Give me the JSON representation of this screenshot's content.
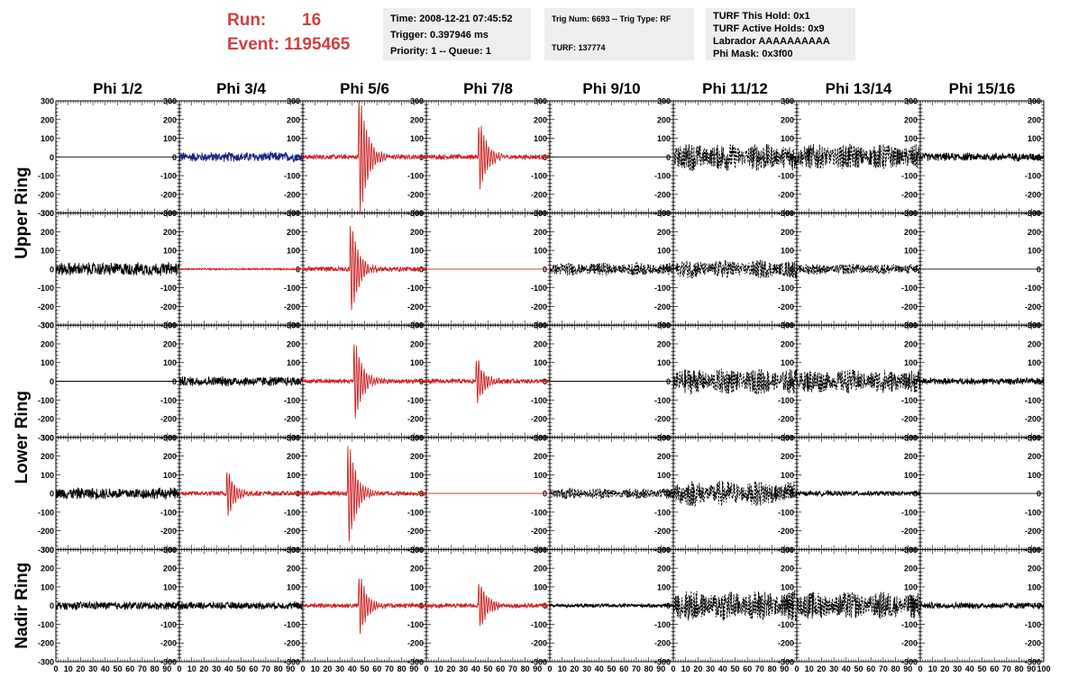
{
  "header": {
    "run_label": "Run:",
    "run_value": "16",
    "event_label": "Event: 1195465"
  },
  "info": {
    "time": "Time: 2008-12-21 07:45:52",
    "trigger": "Trigger: 0.397946 ms",
    "priority": "Priority: 1 -- Queue: 1",
    "trig": "Trig Num: 6693 -- Trig Type: RF",
    "turf": "TURF: 137774",
    "turf_hold": "TURF This Hold: 0x1",
    "turf_active": "TURF Active Holds: 0x9",
    "labrador": "Labrador AAAAAAAAAA",
    "phi_mask": "Phi Mask: 0x3f00"
  },
  "colors": {
    "waveform_default": "#000000",
    "waveform_red": "#cc2222",
    "waveform_blue": "#1a237e",
    "title_red": "#d04040"
  },
  "chart_data": {
    "type": "line",
    "columns": [
      "Phi 1/2",
      "Phi 3/4",
      "Phi 5/6",
      "Phi 7/8",
      "Phi 9/10",
      "Phi 11/12",
      "Phi 13/14",
      "Phi 15/16"
    ],
    "row_labels": [
      "Upper Ring",
      "Lower Ring",
      "Nadir Ring"
    ],
    "ylim": [
      -300,
      300
    ],
    "yticks": [
      "-300",
      "-200",
      "-100",
      "0",
      "100",
      "200",
      "300"
    ],
    "xlim": [
      0,
      100
    ],
    "xticks": [
      "0",
      "10",
      "20",
      "30",
      "40",
      "50",
      "60",
      "70",
      "80",
      "90",
      "100"
    ],
    "panels": [
      [
        {
          "style": "flat",
          "color": "black"
        },
        {
          "style": "noise",
          "amplitude": 30,
          "color": "blue"
        },
        {
          "style": "pulse",
          "amplitude": 300,
          "center": 47,
          "color": "red"
        },
        {
          "style": "pulse",
          "amplitude": 170,
          "center": 44,
          "color": "red"
        },
        {
          "style": "flat",
          "color": "black"
        },
        {
          "style": "dashed",
          "amplitude": 75,
          "color": "black"
        },
        {
          "style": "dashed",
          "amplitude": 70,
          "color": "black"
        },
        {
          "style": "noise",
          "amplitude": 25,
          "color": "black"
        }
      ],
      [
        {
          "style": "noise",
          "amplitude": 40,
          "color": "black"
        },
        {
          "style": "noise",
          "amplitude": 5,
          "color": "red"
        },
        {
          "style": "pulse",
          "amplitude": 230,
          "center": 40,
          "color": "red"
        },
        {
          "style": "flat",
          "color": "red"
        },
        {
          "style": "dashed",
          "amplitude": 35,
          "color": "black"
        },
        {
          "style": "dashed",
          "amplitude": 50,
          "color": "black"
        },
        {
          "style": "dashed",
          "amplitude": 30,
          "color": "black"
        },
        {
          "style": "flat",
          "color": "black"
        }
      ],
      [
        {
          "style": "flat",
          "color": "black"
        },
        {
          "style": "noise",
          "amplitude": 30,
          "color": "black"
        },
        {
          "style": "pulse",
          "amplitude": 200,
          "center": 43,
          "color": "red"
        },
        {
          "style": "pulse",
          "amplitude": 110,
          "center": 42,
          "color": "red"
        },
        {
          "style": "flat",
          "color": "black"
        },
        {
          "style": "dashed",
          "amplitude": 70,
          "color": "black"
        },
        {
          "style": "dashed",
          "amplitude": 65,
          "color": "black"
        },
        {
          "style": "noise",
          "amplitude": 20,
          "color": "black"
        }
      ],
      [
        {
          "style": "noise",
          "amplitude": 35,
          "color": "black"
        },
        {
          "style": "pulse",
          "amplitude": 110,
          "center": 40,
          "color": "red"
        },
        {
          "style": "pulse",
          "amplitude": 250,
          "center": 38,
          "color": "red"
        },
        {
          "style": "flat",
          "color": "red"
        },
        {
          "style": "dashed",
          "amplitude": 30,
          "color": "black"
        },
        {
          "style": "dashed",
          "amplitude": 70,
          "color": "black"
        },
        {
          "style": "noise",
          "amplitude": 15,
          "color": "black"
        },
        {
          "style": "flat",
          "color": "black"
        }
      ],
      [
        {
          "style": "noise",
          "amplitude": 25,
          "color": "black"
        },
        {
          "style": "noise",
          "amplitude": 22,
          "color": "black"
        },
        {
          "style": "pulse",
          "amplitude": 150,
          "center": 47,
          "color": "red"
        },
        {
          "style": "pulse",
          "amplitude": 120,
          "center": 44,
          "color": "red"
        },
        {
          "style": "noise",
          "amplitude": 12,
          "color": "black"
        },
        {
          "style": "dashed",
          "amplitude": 85,
          "color": "black"
        },
        {
          "style": "dashed",
          "amplitude": 75,
          "color": "black"
        },
        {
          "style": "noise",
          "amplitude": 20,
          "color": "black"
        }
      ]
    ]
  }
}
